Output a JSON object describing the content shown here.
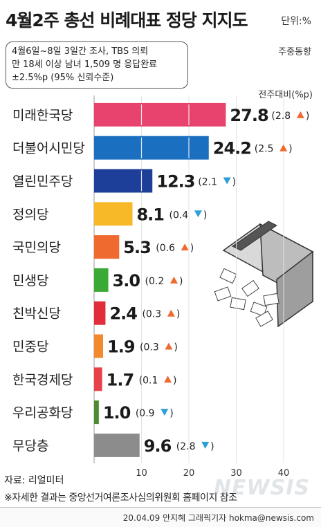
{
  "header": {
    "title": "4월2주 총선 비례대표 정당 지지도",
    "unit": "단위:%"
  },
  "survey_info": {
    "lines": [
      "4월6일~8일 3일간 조사, TBS 의뢰",
      "만 18세 이상 남녀 1,509 명 응답완료",
      "±2.5%p (95% 신뢰수준)"
    ],
    "sub_title": "주중동향",
    "change_header": "전주대비(%p)"
  },
  "chart_data": {
    "type": "bar",
    "orientation": "horizontal",
    "categories": [
      "미래한국당",
      "더불어시민당",
      "열린민주당",
      "정의당",
      "국민의당",
      "민생당",
      "친박신당",
      "민중당",
      "한국경제당",
      "우리공화당",
      "무당층"
    ],
    "values": [
      27.8,
      24.2,
      12.3,
      8.1,
      5.3,
      3.0,
      2.4,
      1.9,
      1.7,
      1.0,
      9.6
    ],
    "value_labels": [
      "27.8",
      "24.2",
      "12.3",
      "8.1",
      "5.3",
      "3.0",
      "2.4",
      "1.9",
      "1.7",
      "1.0",
      "9.6"
    ],
    "changes": [
      2.8,
      2.5,
      2.1,
      0.4,
      0.6,
      0.2,
      0.3,
      0.3,
      0.1,
      0.9,
      2.8
    ],
    "change_labels": [
      "2.8",
      "2.5",
      "2.1",
      "0.4",
      "0.6",
      "0.2",
      "0.3",
      "0.3",
      "0.1",
      "0.9",
      "2.8"
    ],
    "change_direction": [
      "up",
      "up",
      "down",
      "down",
      "up",
      "up",
      "up",
      "up",
      "up",
      "down",
      "down"
    ],
    "colors": [
      "#e8436f",
      "#1b6fc0",
      "#1e3f99",
      "#f7b928",
      "#ef6a2e",
      "#3aa935",
      "#e02f3a",
      "#f2892c",
      "#ea4048",
      "#4e8a32",
      "#8c8c8c"
    ],
    "up_color": "#ef6a2e",
    "down_color": "#2c9fd8",
    "xlim": [
      0,
      40
    ],
    "x_ticks": [
      10,
      20,
      30,
      40
    ],
    "grid": "vertical lines at ticks"
  },
  "footer": {
    "source": "자료: 리얼미터",
    "note": "※자세한 결과는 중앙선거여론조사심의위원회 홈페이지 참조",
    "credit": "20.04.09 안지혜 그래픽기자 hokma@newsis.com",
    "watermark": "NEWSIS"
  }
}
